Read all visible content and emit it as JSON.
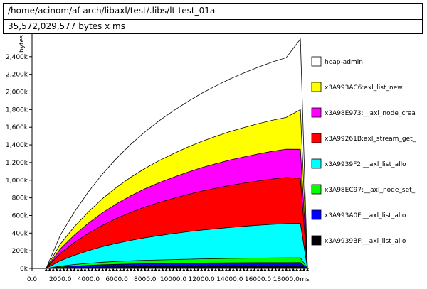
{
  "header": {
    "program_path": "/home/acinom/af-arch/libaxl/test/.libs/lt-test_01a",
    "total_summary": "35,572,029,577 bytes x ms"
  },
  "chart_data": {
    "type": "area",
    "stacked": true,
    "ylabel": "bytes",
    "xlabel": "ms",
    "xlim": [
      0,
      19500
    ],
    "ylim": [
      0,
      2640
    ],
    "y_unit": "k bytes",
    "x_ticks": [
      0,
      2000,
      4000,
      6000,
      8000,
      10000,
      12000,
      14000,
      16000,
      18000
    ],
    "x_tick_labels": [
      "0.0",
      "2000.0",
      "4000.0",
      "6000.0",
      "8000.0",
      "10000.0",
      "12000.0",
      "14000.0",
      "16000.0",
      "18000.0"
    ],
    "y_ticks": [
      0,
      200,
      400,
      600,
      800,
      1000,
      1200,
      1400,
      1600,
      1800,
      2000,
      2200,
      2400
    ],
    "y_tick_labels": [
      "0k",
      "200k",
      "400k",
      "600k",
      "800k",
      "1,000k",
      "1,200k",
      "1,400k",
      "1,600k",
      "1,800k",
      "2,000k",
      "2,200k",
      "2,400k"
    ],
    "legend_position": "right",
    "x": [
      1000,
      2000,
      3000,
      4000,
      5000,
      6000,
      7000,
      8000,
      9000,
      10000,
      11000,
      12000,
      13000,
      14000,
      15000,
      16000,
      17000,
      18000,
      19000,
      19500
    ],
    "series": [
      {
        "name": "x3A9939BF:__axl_list_allo",
        "color": "#000000",
        "values": [
          0,
          6,
          10,
          13,
          16,
          18,
          20,
          21,
          22,
          23,
          24,
          25,
          25,
          26,
          26,
          27,
          27,
          27,
          28,
          0
        ]
      },
      {
        "name": "x3A993A0F:__axl_list_allo",
        "color": "#0000ff",
        "values": [
          0,
          10,
          16,
          21,
          25,
          28,
          30,
          32,
          33,
          34,
          35,
          36,
          37,
          37,
          38,
          38,
          38,
          38,
          38,
          0
        ]
      },
      {
        "name": "x3A98EC97:__axl_node_set_",
        "color": "#00ff00",
        "values": [
          0,
          10,
          18,
          24,
          29,
          33,
          36,
          39,
          41,
          43,
          45,
          47,
          48,
          50,
          51,
          52,
          53,
          54,
          54,
          0
        ]
      },
      {
        "name": "x3A9939F2:__axl_list_allo",
        "color": "#00ffff",
        "values": [
          0,
          60,
          104,
          143,
          177,
          206,
          232,
          255,
          276,
          294,
          311,
          326,
          339,
          351,
          362,
          372,
          381,
          388,
          390,
          0
        ]
      },
      {
        "name": "x3A99261B:axl_stream_get_",
        "color": "#ff0000",
        "values": [
          0,
          85,
          145,
          198,
          243,
          283,
          318,
          349,
          376,
          400,
          422,
          442,
          460,
          476,
          490,
          502,
          514,
          524,
          510,
          0
        ]
      },
      {
        "name": "x3A98E973:__axl_node_crea",
        "color": "#ff00ff",
        "values": [
          0,
          50,
          85,
          115,
          143,
          167,
          188,
          207,
          224,
          239,
          253,
          266,
          277,
          288,
          297,
          306,
          314,
          320,
          330,
          0
        ]
      },
      {
        "name": "x3A993AC6:axl_list_new",
        "color": "#ffff00",
        "values": [
          0,
          55,
          95,
          129,
          159,
          186,
          210,
          231,
          250,
          267,
          283,
          297,
          310,
          322,
          333,
          343,
          352,
          360,
          450,
          0
        ]
      },
      {
        "name": "heap-admin",
        "color": "#ffffff",
        "values": [
          0,
          100,
          167,
          227,
          280,
          329,
          374,
          414,
          451,
          485,
          516,
          545,
          571,
          596,
          619,
          640,
          660,
          678,
          800,
          0
        ]
      }
    ]
  }
}
